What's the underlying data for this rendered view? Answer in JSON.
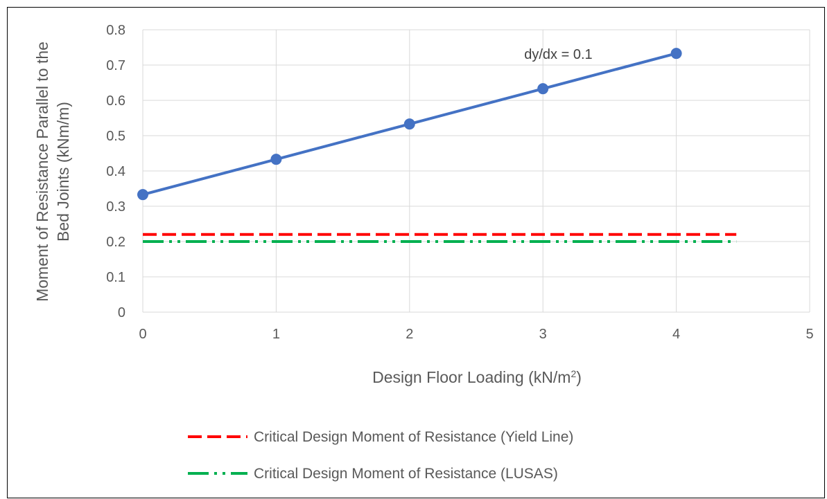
{
  "chart_data": {
    "type": "line",
    "xlabel_main": "Design Floor Loading (kN/m",
    "xlabel_sup": "2",
    "xlabel_tail": ")",
    "ylabel_line1": "Moment of Resistance  Parallel to the",
    "ylabel_line2": "Bed Joints (kNm/m)",
    "xlim": [
      0,
      5
    ],
    "ylim": [
      0,
      0.8
    ],
    "x_ticks": [
      "0",
      "1",
      "2",
      "3",
      "4",
      "5"
    ],
    "y_ticks": [
      "0",
      "0.1",
      "0.2",
      "0.3",
      "0.4",
      "0.5",
      "0.6",
      "0.7",
      "0.8"
    ],
    "grid": true,
    "annotation": "dy/dx = 0.1",
    "series": [
      {
        "x": [
          0,
          1,
          2,
          3,
          4
        ],
        "values": [
          0.333,
          0.433,
          0.533,
          0.633,
          0.733
        ],
        "color": "#4472C4",
        "style": "solid-markers"
      },
      {
        "name": "Critical Design Moment of Resistance (Yield Line)",
        "x": [
          0,
          4.45
        ],
        "values": [
          0.22,
          0.22
        ],
        "color": "#FF0000",
        "style": "dashed"
      },
      {
        "name": "Critical Design Moment of Resistance (LUSAS)",
        "x": [
          0,
          4.45
        ],
        "values": [
          0.2,
          0.2
        ],
        "color": "#00B050",
        "style": "dash-dot-dot"
      }
    ],
    "legend_position": "bottom"
  }
}
